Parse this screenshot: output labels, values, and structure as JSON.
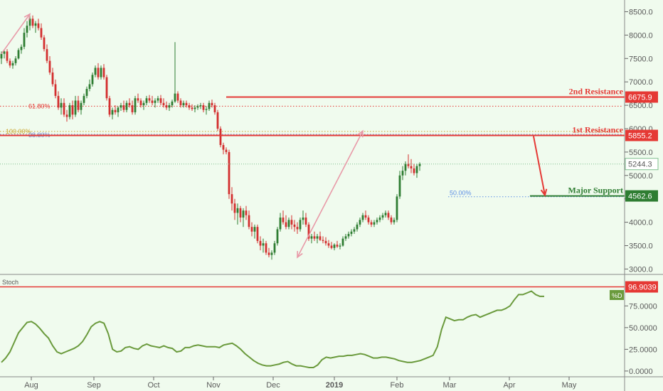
{
  "chart_data": [
    {
      "type": "candlestick",
      "title": "",
      "xlabel": "",
      "ylabel": "",
      "x_ticks": [
        "Aug",
        "Sep",
        "Oct",
        "Nov",
        "Dec",
        "2019",
        "Feb",
        "Mar",
        "Apr",
        "May"
      ],
      "y_ticks": [
        3000,
        3500,
        4000,
        4500,
        5000,
        5500,
        6000,
        6500,
        7000,
        7500,
        8000,
        8500
      ],
      "y_tick_labels": [
        "3000.0",
        "3500.0",
        "4000.0",
        "4500.0",
        "5000.0",
        "5500.0",
        "6000.0",
        "6500.0",
        "7000.0",
        "7500.0",
        "8000.0",
        "8500.0"
      ],
      "ylim": [
        2900,
        8750
      ],
      "colors": {
        "up": "#2e7d32",
        "down": "#d32f2f",
        "resistance": "#e53935",
        "support": "#2e7d32",
        "projection": "#e89aa8"
      },
      "ohlc": [
        [
          7500,
          7650,
          7380,
          7600
        ],
        [
          7600,
          7700,
          7500,
          7650
        ],
        [
          7650,
          7700,
          7400,
          7450
        ],
        [
          7450,
          7500,
          7300,
          7350
        ],
        [
          7350,
          7450,
          7280,
          7400
        ],
        [
          7400,
          7550,
          7350,
          7500
        ],
        [
          7500,
          7720,
          7480,
          7680
        ],
        [
          7680,
          7800,
          7600,
          7750
        ],
        [
          7750,
          8150,
          7700,
          8050
        ],
        [
          8050,
          8300,
          7950,
          8200
        ],
        [
          8200,
          8450,
          8100,
          8350
        ],
        [
          8350,
          8420,
          8150,
          8200
        ],
        [
          8200,
          8300,
          8050,
          8250
        ],
        [
          8250,
          8350,
          8100,
          8150
        ],
        [
          8150,
          8250,
          7900,
          7950
        ],
        [
          7950,
          8000,
          7650,
          7700
        ],
        [
          7700,
          7800,
          7400,
          7450
        ],
        [
          7450,
          7550,
          7150,
          7200
        ],
        [
          7200,
          7300,
          6900,
          6950
        ],
        [
          6950,
          7050,
          6650,
          6700
        ],
        [
          6700,
          6800,
          6400,
          6450
        ],
        [
          6450,
          6650,
          6300,
          6550
        ],
        [
          6550,
          6650,
          6250,
          6300
        ],
        [
          6300,
          6400,
          6150,
          6250
        ],
        [
          6250,
          6550,
          6200,
          6500
        ],
        [
          6500,
          6600,
          6200,
          6300
        ],
        [
          6300,
          6700,
          6250,
          6600
        ],
        [
          6600,
          6700,
          6350,
          6400
        ],
        [
          6400,
          6600,
          6300,
          6550
        ],
        [
          6550,
          6750,
          6500,
          6700
        ],
        [
          6700,
          6900,
          6650,
          6850
        ],
        [
          6850,
          7050,
          6800,
          6950
        ],
        [
          6950,
          7200,
          6900,
          7150
        ],
        [
          7150,
          7350,
          7100,
          7300
        ],
        [
          7300,
          7400,
          7050,
          7100
        ],
        [
          7100,
          7350,
          7050,
          7300
        ],
        [
          7300,
          7380,
          7050,
          7100
        ],
        [
          7100,
          7150,
          6600,
          6650
        ],
        [
          6650,
          6700,
          6250,
          6300
        ],
        [
          6300,
          6450,
          6200,
          6400
        ],
        [
          6400,
          6500,
          6300,
          6350
        ],
        [
          6350,
          6480,
          6250,
          6450
        ],
        [
          6450,
          6550,
          6380,
          6500
        ],
        [
          6500,
          6600,
          6350,
          6400
        ],
        [
          6400,
          6600,
          6350,
          6550
        ],
        [
          6550,
          6650,
          6450,
          6500
        ],
        [
          6500,
          6600,
          6300,
          6350
        ],
        [
          6350,
          6700,
          6300,
          6650
        ],
        [
          6650,
          6750,
          6550,
          6600
        ],
        [
          6600,
          6650,
          6450,
          6500
        ],
        [
          6500,
          6600,
          6400,
          6550
        ],
        [
          6550,
          6700,
          6500,
          6650
        ],
        [
          6650,
          6720,
          6550,
          6600
        ],
        [
          6600,
          6700,
          6500,
          6550
        ],
        [
          6550,
          6650,
          6450,
          6600
        ],
        [
          6600,
          6700,
          6550,
          6650
        ],
        [
          6650,
          6720,
          6500,
          6550
        ],
        [
          6550,
          6650,
          6450,
          6500
        ],
        [
          6500,
          6580,
          6400,
          6450
        ],
        [
          6450,
          6550,
          6380,
          6500
        ],
        [
          6500,
          6620,
          6450,
          6580
        ],
        [
          6580,
          7850,
          6550,
          6750
        ],
        [
          6750,
          6800,
          6550,
          6600
        ],
        [
          6600,
          6650,
          6450,
          6500
        ],
        [
          6500,
          6600,
          6450,
          6550
        ],
        [
          6550,
          6600,
          6450,
          6500
        ],
        [
          6500,
          6550,
          6400,
          6450
        ],
        [
          6450,
          6520,
          6380,
          6420
        ],
        [
          6420,
          6500,
          6350,
          6450
        ],
        [
          6450,
          6520,
          6400,
          6480
        ],
        [
          6480,
          6550,
          6420,
          6500
        ],
        [
          6500,
          6550,
          6350,
          6400
        ],
        [
          6400,
          6480,
          6300,
          6420
        ],
        [
          6420,
          6600,
          6380,
          6550
        ],
        [
          6550,
          6620,
          6450,
          6500
        ],
        [
          6500,
          6550,
          6300,
          6350
        ],
        [
          6350,
          6400,
          5950,
          6000
        ],
        [
          6000,
          6050,
          5600,
          5650
        ],
        [
          5650,
          5700,
          5450,
          5550
        ],
        [
          5550,
          5600,
          5450,
          5500
        ],
        [
          5500,
          5550,
          4500,
          4600
        ],
        [
          4600,
          4750,
          4250,
          4400
        ],
        [
          4400,
          4500,
          4050,
          4200
        ],
        [
          4200,
          4400,
          3950,
          4300
        ],
        [
          4300,
          4350,
          4000,
          4100
        ],
        [
          4100,
          4300,
          3900,
          4250
        ],
        [
          4250,
          4350,
          4050,
          4150
        ],
        [
          4150,
          4250,
          3850,
          3900
        ],
        [
          3900,
          4000,
          3700,
          3800
        ],
        [
          3800,
          3950,
          3650,
          3900
        ],
        [
          3900,
          3950,
          3550,
          3600
        ],
        [
          3600,
          3700,
          3400,
          3500
        ],
        [
          3500,
          3650,
          3350,
          3550
        ],
        [
          3550,
          3600,
          3300,
          3350
        ],
        [
          3350,
          3450,
          3250,
          3300
        ],
        [
          3300,
          3400,
          3200,
          3350
        ],
        [
          3350,
          3600,
          3300,
          3550
        ],
        [
          3550,
          3900,
          3500,
          3850
        ],
        [
          3850,
          4200,
          3800,
          4100
        ],
        [
          4100,
          4250,
          3950,
          4000
        ],
        [
          4000,
          4150,
          3850,
          3900
        ],
        [
          3900,
          4100,
          3850,
          4050
        ],
        [
          4050,
          4150,
          3850,
          3950
        ],
        [
          3950,
          4050,
          3800,
          3900
        ],
        [
          3900,
          4000,
          3750,
          3850
        ],
        [
          3850,
          4100,
          3800,
          4050
        ],
        [
          4050,
          4250,
          3950,
          4100
        ],
        [
          4100,
          4200,
          3900,
          3950
        ],
        [
          3950,
          4000,
          3600,
          3650
        ],
        [
          3650,
          3750,
          3550,
          3700
        ],
        [
          3700,
          3800,
          3600,
          3650
        ],
        [
          3650,
          3750,
          3550,
          3700
        ],
        [
          3700,
          3800,
          3600,
          3620
        ],
        [
          3620,
          3700,
          3550,
          3600
        ],
        [
          3600,
          3680,
          3500,
          3550
        ],
        [
          3550,
          3620,
          3450,
          3500
        ],
        [
          3500,
          3580,
          3420,
          3450
        ],
        [
          3450,
          3550,
          3400,
          3520
        ],
        [
          3520,
          3600,
          3450,
          3480
        ],
        [
          3480,
          3550,
          3420,
          3500
        ],
        [
          3500,
          3700,
          3480,
          3650
        ],
        [
          3650,
          3750,
          3600,
          3700
        ],
        [
          3700,
          3800,
          3650,
          3750
        ],
        [
          3750,
          3850,
          3700,
          3800
        ],
        [
          3800,
          3900,
          3750,
          3850
        ],
        [
          3850,
          4000,
          3800,
          3950
        ],
        [
          3950,
          4100,
          3900,
          4050
        ],
        [
          4050,
          4200,
          4000,
          4150
        ],
        [
          4150,
          4250,
          4050,
          4100
        ],
        [
          4100,
          4150,
          3950,
          4000
        ],
        [
          4000,
          4050,
          3900,
          3950
        ],
        [
          3950,
          4050,
          3900,
          4000
        ],
        [
          4000,
          4100,
          3950,
          4050
        ],
        [
          4050,
          4150,
          4000,
          4100
        ],
        [
          4100,
          4200,
          4050,
          4150
        ],
        [
          4150,
          4250,
          4100,
          4200
        ],
        [
          4200,
          4250,
          4050,
          4100
        ],
        [
          4100,
          4150,
          3950,
          4000
        ],
        [
          4000,
          4100,
          3950,
          4050
        ],
        [
          4050,
          4600,
          4000,
          4550
        ],
        [
          4550,
          5100,
          4500,
          5000
        ],
        [
          5000,
          5200,
          4900,
          5100
        ],
        [
          5100,
          5300,
          5000,
          5250
        ],
        [
          5250,
          5450,
          5150,
          5200
        ],
        [
          5200,
          5350,
          5050,
          5150
        ],
        [
          5150,
          5250,
          5000,
          5050
        ],
        [
          5050,
          5250,
          4950,
          5200
        ],
        [
          5200,
          5280,
          5100,
          5244
        ]
      ],
      "price_label": {
        "value": "5244.3"
      },
      "levels": [
        {
          "name": "2nd Resistance",
          "label": "2nd Resistance",
          "value": 6675.9,
          "badge": "6675.9",
          "color": "#e53935"
        },
        {
          "name": "1st Resistance",
          "label": "1st Resistance",
          "value": 5855.2,
          "badge": "5855.2",
          "color": "#e53935"
        },
        {
          "name": "Major Support",
          "label": "Major Support",
          "value": 4562.6,
          "badge": "4562.6",
          "color": "#2e7d32"
        }
      ],
      "fib_levels": [
        {
          "label": "61.80%",
          "value": 6480,
          "color": "#e53935"
        },
        {
          "label": "100.00%",
          "value": 5940,
          "color": "#c9a227"
        },
        {
          "label": "38.80%",
          "value": 5880,
          "color": "#7986cb"
        },
        {
          "label": "50.00%",
          "value": 4545,
          "color": "#5c8ee6"
        }
      ],
      "projections": [
        {
          "from": [
            0,
            7600
          ],
          "to": [
            10,
            8450
          ],
          "color": "#e89aa8"
        },
        {
          "from": [
            104,
            3250
          ],
          "to": [
            127,
            5950
          ],
          "color": "#e89aa8"
        },
        {
          "from": [
            187,
            5840
          ],
          "to": [
            191,
            4580
          ],
          "color": "#e53935"
        }
      ]
    },
    {
      "type": "line",
      "title": "",
      "indicator_label": "Stoch",
      "legend": "%D",
      "ylim": [
        -5,
        108
      ],
      "y_ticks": [
        0,
        25,
        50,
        75
      ],
      "y_tick_labels": [
        "0.0000",
        "25.0000",
        "50.0000",
        "75.0000"
      ],
      "level": {
        "value": 96.9039,
        "badge": "96.9039"
      },
      "series": [
        {
          "color": "#6a9a3c",
          "values": [
            10,
            15,
            22,
            33,
            44,
            50,
            56,
            57,
            54,
            49,
            43,
            38,
            29,
            22,
            20,
            22,
            24,
            26,
            29,
            34,
            42,
            51,
            55,
            57,
            55,
            43,
            25,
            22,
            23,
            27,
            28,
            26,
            25,
            29,
            31,
            29,
            28,
            27,
            29,
            27,
            26,
            22,
            23,
            27,
            27,
            29,
            30,
            29,
            28,
            28,
            28,
            27,
            30,
            31,
            32,
            29,
            25,
            20,
            16,
            12,
            9,
            7,
            6,
            6,
            7,
            8,
            10,
            11,
            8,
            6,
            6,
            5,
            4,
            4,
            7,
            13,
            16,
            15,
            16,
            17,
            17,
            18,
            18,
            19,
            20,
            19,
            17,
            15,
            15,
            16,
            16,
            15,
            14,
            12,
            11,
            10,
            10,
            11,
            12,
            14,
            16,
            18,
            28,
            48,
            62,
            60,
            58,
            59,
            59,
            62,
            64,
            65,
            62,
            64,
            66,
            68,
            70,
            70,
            72,
            75,
            82,
            88,
            88,
            90,
            92,
            88,
            86,
            86
          ]
        }
      ]
    }
  ]
}
